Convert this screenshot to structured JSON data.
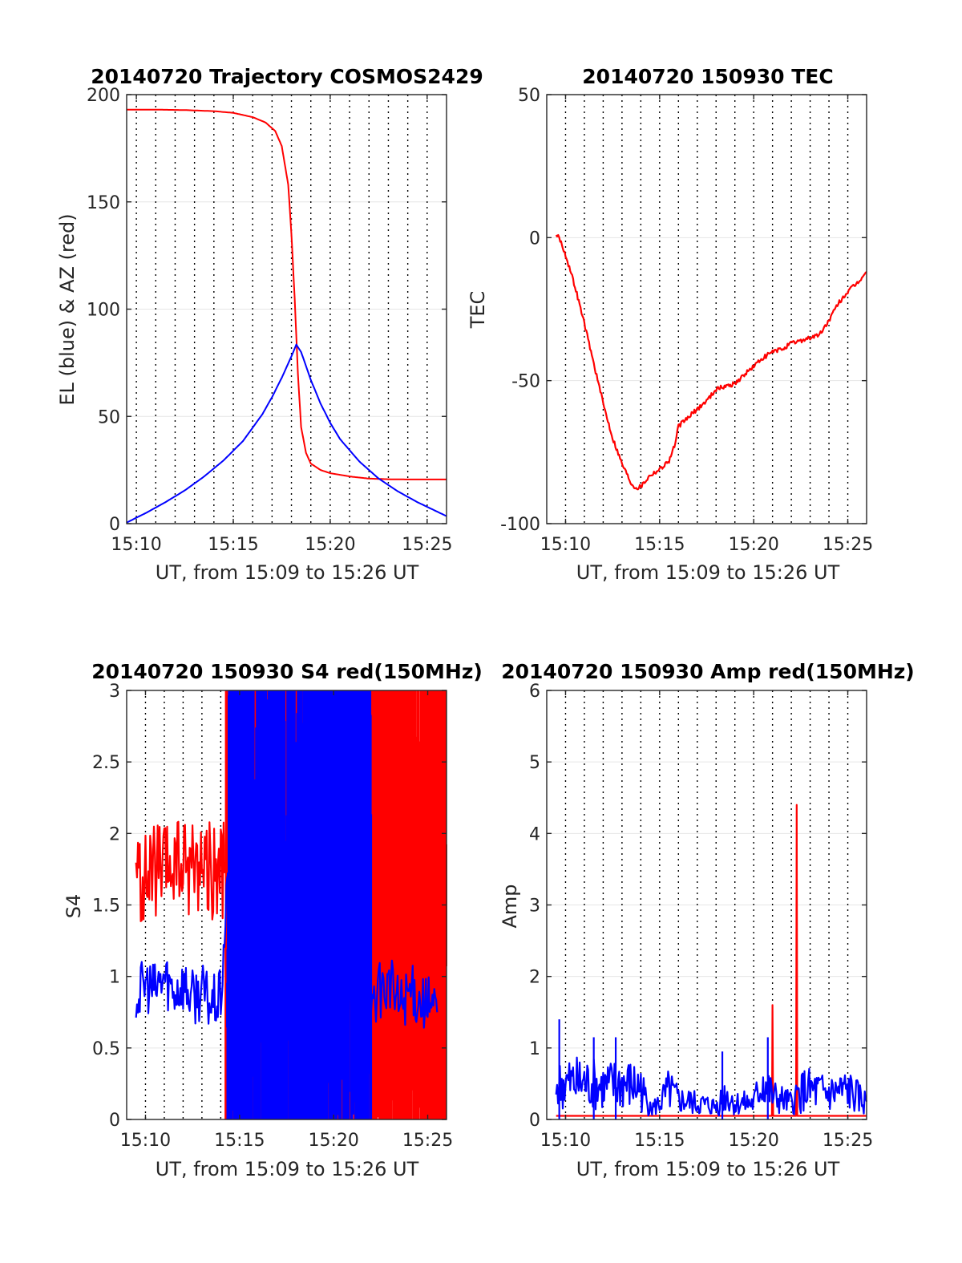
{
  "chart_data": [
    {
      "type": "line",
      "title": "20140720 Trajectory COSMOS2429",
      "xlabel": "UT, from 15:09 to 15:26 UT",
      "ylabel": "EL (blue) & AZ (red)",
      "xlim": [
        "15:09:30",
        "15:26:00"
      ],
      "ylim": [
        0,
        200
      ],
      "xticks": [
        "15:10",
        "15:15",
        "15:20",
        "15:25"
      ],
      "yticks": [
        "0",
        "50",
        "100",
        "150",
        "200"
      ],
      "grid": true,
      "series": [
        {
          "name": "AZ",
          "color": "#ff0000",
          "x": [
            "15:09:30",
            "15:11:00",
            "15:12:30",
            "15:14:00",
            "15:15:00",
            "15:16:00",
            "15:16:40",
            "15:17:10",
            "15:17:30",
            "15:17:50",
            "15:18:00",
            "15:18:10",
            "15:18:20",
            "15:18:30",
            "15:18:45",
            "15:19:00",
            "15:19:30",
            "15:20:00",
            "15:21:00",
            "15:22:00",
            "15:23:00",
            "15:24:00",
            "15:26:00"
          ],
          "values": [
            193,
            193,
            192.8,
            192.3,
            191.5,
            189.5,
            187,
            183,
            176,
            158,
            135,
            105,
            70,
            45,
            33,
            28,
            25,
            23.5,
            22,
            21,
            20.7,
            20.6,
            20.6
          ]
        },
        {
          "name": "EL",
          "color": "#0000ff",
          "x": [
            "15:09:30",
            "15:10:30",
            "15:11:30",
            "15:12:30",
            "15:13:30",
            "15:14:30",
            "15:15:30",
            "15:16:30",
            "15:17:00",
            "15:17:30",
            "15:18:00",
            "15:18:15",
            "15:18:30",
            "15:19:00",
            "15:19:30",
            "15:20:00",
            "15:20:30",
            "15:21:30",
            "15:22:30",
            "15:23:30",
            "15:24:30",
            "15:26:00"
          ],
          "values": [
            0.5,
            5,
            10,
            15.5,
            22,
            29.5,
            38.5,
            51,
            59,
            68,
            78,
            83.5,
            80,
            67,
            56,
            47,
            39.5,
            29,
            21,
            15,
            10,
            3.5
          ]
        }
      ]
    },
    {
      "type": "line",
      "title": "20140720 150930 TEC",
      "xlabel": "UT, from 15:09 to 15:26 UT",
      "ylabel": "TEC",
      "xlim": [
        "15:09:00",
        "15:26:00"
      ],
      "ylim": [
        -100,
        50
      ],
      "xticks": [
        "15:10",
        "15:15",
        "15:20",
        "15:25"
      ],
      "yticks": [
        "-100",
        "-50",
        "0",
        "50"
      ],
      "grid": true,
      "series": [
        {
          "name": "TEC",
          "color": "#ff0000",
          "x": [
            "15:09:30",
            "15:09:40",
            "15:10:00",
            "15:10:30",
            "15:11:00",
            "15:11:30",
            "15:12:00",
            "15:12:30",
            "15:13:00",
            "15:13:30",
            "15:13:45",
            "15:14:00",
            "15:14:30",
            "15:15:00",
            "15:15:30",
            "15:15:50",
            "15:16:00",
            "15:16:30",
            "15:17:00",
            "15:17:30",
            "15:18:00",
            "15:18:30",
            "15:19:00",
            "15:19:30",
            "15:20:00",
            "15:20:30",
            "15:21:00",
            "15:21:30",
            "15:22:00",
            "15:22:30",
            "15:23:00",
            "15:23:30",
            "15:24:00",
            "15:24:30",
            "15:25:00",
            "15:25:30",
            "15:26:00"
          ],
          "values": [
            1,
            0,
            -6,
            -17,
            -30,
            -44,
            -58,
            -70,
            -79,
            -86,
            -87.5,
            -87,
            -83,
            -81,
            -78,
            -72,
            -66,
            -63,
            -60,
            -57,
            -53,
            -52,
            -51,
            -48,
            -45,
            -42,
            -40,
            -39,
            -37,
            -36,
            -35,
            -34,
            -29,
            -23,
            -19,
            -16,
            -12
          ]
        }
      ]
    },
    {
      "type": "line",
      "title": "20140720 150930 S4 red(150MHz)",
      "xlabel": "UT, from 15:09 to 15:26 UT",
      "ylabel": "S4",
      "xlim": [
        "15:09:00",
        "15:26:00"
      ],
      "ylim": [
        0,
        3
      ],
      "xticks": [
        "15:10",
        "15:15",
        "15:20",
        "15:25"
      ],
      "yticks": [
        "0",
        "0.5",
        "1",
        "1.5",
        "2",
        "2.5",
        "3"
      ],
      "grid": true,
      "series": [
        {
          "name": "red",
          "color": "#ff0000",
          "x": [
            "15:09:30",
            "15:10:00",
            "15:10:30",
            "15:11:00",
            "15:11:30",
            "15:12:00",
            "15:12:30",
            "15:13:00",
            "15:13:30",
            "15:14:00",
            "15:14:15"
          ],
          "values": [
            1.7,
            1.65,
            1.75,
            1.7,
            1.8,
            1.75,
            1.8,
            1.8,
            1.75,
            1.7,
            1.8
          ],
          "dense_band": {
            "x_range": [
              "15:14:15",
              "15:26:00"
            ],
            "value_range": [
              0,
              3
            ]
          }
        },
        {
          "name": "blue",
          "color": "#0000ff",
          "x": [
            "15:09:30",
            "15:10:00",
            "15:10:30",
            "15:11:00",
            "15:11:30",
            "15:12:00",
            "15:12:30",
            "15:13:00",
            "15:13:30",
            "15:14:00",
            "15:14:30",
            "15:15:00",
            "15:15:30",
            "15:16:00",
            "15:16:30",
            "15:22:00",
            "15:22:30",
            "15:23:00",
            "15:23:30",
            "15:24:00",
            "15:24:30",
            "15:25:00",
            "15:25:30"
          ],
          "values": [
            0.85,
            0.95,
            0.9,
            1.0,
            0.9,
            0.95,
            0.85,
            0.9,
            0.8,
            0.85,
            1.9,
            0.95,
            1.1,
            0.9,
            1.05,
            0.85,
            0.9,
            0.95,
            0.8,
            0.9,
            0.85,
            0.8,
            0.75
          ],
          "dense_band": {
            "x_range": [
              "15:14:20",
              "15:22:00"
            ],
            "value_range": [
              0,
              3
            ]
          }
        }
      ]
    },
    {
      "type": "line",
      "title": "20140720 150930 Amp red(150MHz)",
      "xlabel": "UT, from 15:09 to 15:26 UT",
      "ylabel": "Amp",
      "xlim": [
        "15:09:00",
        "15:26:00"
      ],
      "ylim": [
        0,
        6
      ],
      "xticks": [
        "15:10",
        "15:15",
        "15:20",
        "15:25"
      ],
      "yticks": [
        "0",
        "1",
        "2",
        "3",
        "4",
        "5",
        "6"
      ],
      "grid": true,
      "series": [
        {
          "name": "red",
          "color": "#ff0000",
          "x": [
            "15:09:30",
            "15:20:58",
            "15:21:00",
            "15:21:02",
            "15:22:15",
            "15:22:17",
            "15:22:19",
            "15:26:00"
          ],
          "values": [
            0.05,
            0.05,
            1.6,
            0.05,
            0.05,
            4.4,
            0.05,
            0.05
          ]
        },
        {
          "name": "blue",
          "color": "#0000ff",
          "x": [
            "15:09:30",
            "15:10:00",
            "15:11:00",
            "15:12:00",
            "15:13:00",
            "15:14:00",
            "15:14:30",
            "15:15:00",
            "15:15:30",
            "15:16:00",
            "15:17:00",
            "15:18:00",
            "15:18:30",
            "15:19:00",
            "15:20:00",
            "15:20:30",
            "15:21:00",
            "15:22:00",
            "15:22:30",
            "15:23:00",
            "15:24:00",
            "15:25:00",
            "15:26:00"
          ],
          "values": [
            0.5,
            0.55,
            0.55,
            0.5,
            0.55,
            0.5,
            0.15,
            0.25,
            0.45,
            0.3,
            0.25,
            0.2,
            0.4,
            0.25,
            0.25,
            0.6,
            0.35,
            0.25,
            0.45,
            0.45,
            0.4,
            0.45,
            0.25
          ],
          "peaks": {
            "x": [
              "15:09:40",
              "15:11:30",
              "15:12:40",
              "15:18:20",
              "15:20:45"
            ],
            "values": [
              1.4,
              1.15,
              1.15,
              0.95,
              1.15
            ]
          }
        }
      ]
    }
  ]
}
